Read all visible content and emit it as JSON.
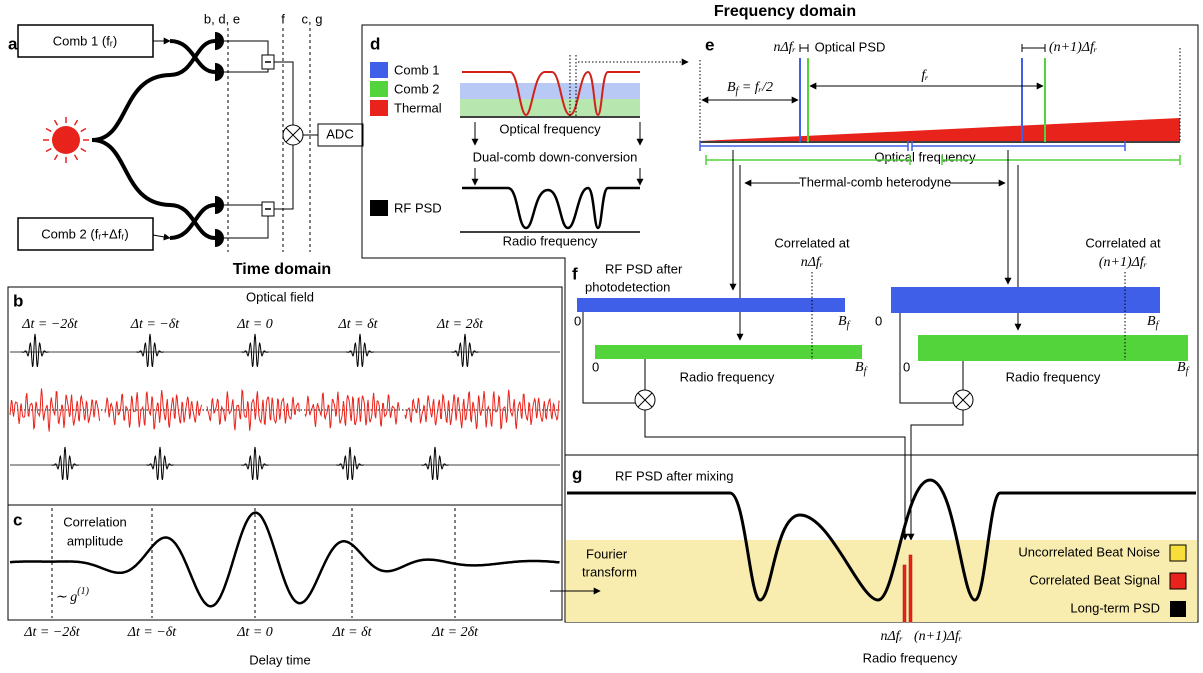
{
  "frequency_domain_title": "Frequency domain",
  "time_domain_title": "Time domain",
  "panel_a": {
    "label": "a",
    "comb1": "Comb 1 (fᵣ)",
    "comb2": "Comb 2 (fᵣ+Δfᵣ)",
    "tap_bde": "b, d, e",
    "tap_f": "f",
    "tap_cg": "c, g",
    "adc": "ADC"
  },
  "panel_d": {
    "label": "d",
    "legend": [
      "Comb 1",
      "Comb 2",
      "Thermal"
    ],
    "optical_axis": "Optical frequency",
    "conversion": "Dual-comb down-conversion",
    "rf_legend": "RF PSD",
    "rf_axis": "Radio frequency"
  },
  "panel_e": {
    "label": "e",
    "title": "Optical PSD",
    "n_df": "nΔfᵣ",
    "n1_df": "(n+1)Δfᵣ",
    "fr": "fᵣ",
    "bf": [
      "B",
      "f",
      " = fᵣ/2"
    ],
    "axis": "Optical frequency",
    "heterodyne": "Thermal-comb heterodyne"
  },
  "panel_f": {
    "label": "f",
    "title": [
      "RF PSD after",
      "photodetection"
    ],
    "corr_left": [
      "Correlated at",
      "nΔfᵣ"
    ],
    "corr_right": [
      "Correlated at",
      "(n+1)Δfᵣ"
    ],
    "zero": "0",
    "bf": [
      "B",
      "f"
    ],
    "axis": "Radio frequency"
  },
  "panel_b": {
    "label": "b",
    "title": "Optical field",
    "delays": [
      "Δt = −2δt",
      "Δt = −δt",
      "Δt = 0",
      "Δt = δt",
      "Δt = 2δt"
    ]
  },
  "panel_c": {
    "label": "c",
    "title": [
      "Correlation",
      "amplitude"
    ],
    "g1": [
      "∼ g",
      "(1)"
    ],
    "delays": [
      "Δt = −2δt",
      "Δt = −δt",
      "Δt = 0",
      "Δt = δt",
      "Δt = 2δt"
    ],
    "axis": "Delay time"
  },
  "fourier": [
    "Fourier",
    "transform"
  ],
  "panel_g": {
    "label": "g",
    "title": "RF PSD after mixing",
    "legend": [
      "Uncorrelated Beat Noise",
      "Correlated Beat Signal",
      "Long-term PSD"
    ],
    "n_df": "nΔfᵣ",
    "n1_df": "(n+1)Δfᵣ",
    "axis": "Radio frequency"
  }
}
